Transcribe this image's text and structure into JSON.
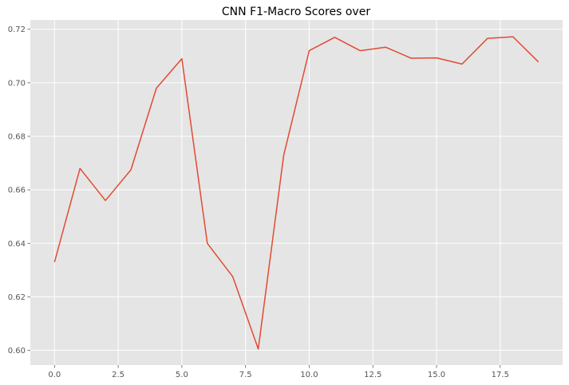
{
  "chart_data": {
    "type": "line",
    "title": "CNN F1-Macro Scores over",
    "xlabel": "",
    "ylabel": "",
    "xlim": [
      -0.95,
      19.95
    ],
    "ylim": [
      0.5945,
      0.7235
    ],
    "x_ticks": [
      0.0,
      2.5,
      5.0,
      7.5,
      10.0,
      12.5,
      15.0,
      17.5
    ],
    "x_tick_labels": [
      "0.0",
      "2.5",
      "5.0",
      "7.5",
      "10.0",
      "12.5",
      "15.0",
      "17.5"
    ],
    "y_ticks": [
      0.6,
      0.62,
      0.64,
      0.66,
      0.68,
      0.7,
      0.72
    ],
    "y_tick_labels": [
      "0.60",
      "0.62",
      "0.64",
      "0.66",
      "0.68",
      "0.70",
      "0.72"
    ],
    "grid": true,
    "background": "#e5e5e5",
    "grid_color": "#ffffff",
    "series": [
      {
        "color": "#e24a33",
        "x": [
          0,
          1,
          2,
          3,
          4,
          5,
          6,
          7,
          8,
          9,
          10,
          11,
          12,
          13,
          14,
          15,
          16,
          17,
          18,
          19
        ],
        "y": [
          0.633,
          0.668,
          0.656,
          0.6675,
          0.698,
          0.709,
          0.64,
          0.6275,
          0.6005,
          0.673,
          0.712,
          0.717,
          0.712,
          0.7133,
          0.7092,
          0.7093,
          0.707,
          0.7166,
          0.7172,
          0.7078
        ]
      }
    ]
  }
}
